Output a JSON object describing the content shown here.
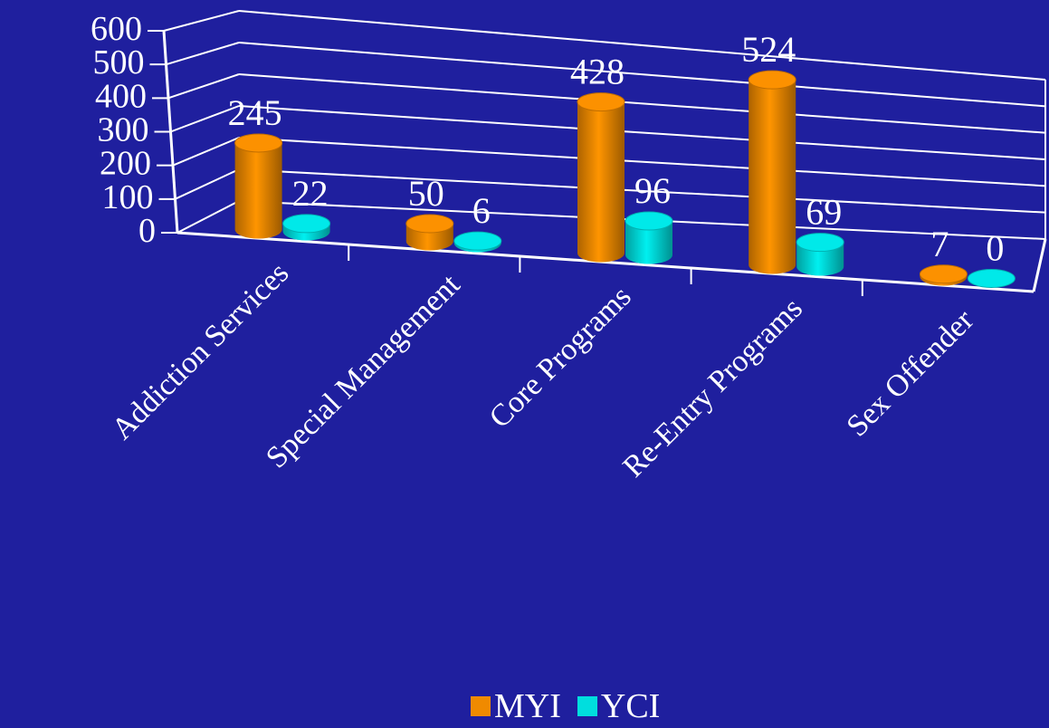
{
  "chart_data": {
    "type": "bar",
    "categories": [
      "Addiction Services",
      "Special Management",
      "Core Programs",
      "Re-Entry Programs",
      "Sex Offender"
    ],
    "series": [
      {
        "name": "MYI",
        "values": [
          245,
          50,
          428,
          524,
          7
        ],
        "color": "#f08a00"
      },
      {
        "name": "YCI",
        "values": [
          22,
          6,
          96,
          69,
          0
        ],
        "color": "#00dede"
      }
    ],
    "yticks": [
      "0",
      "100",
      "200",
      "300",
      "400",
      "500",
      "600"
    ],
    "ylim": [
      0,
      600
    ],
    "grid": true,
    "style": "3d-cylinder",
    "legend": "bottom",
    "title": "",
    "xlabel": "",
    "ylabel": ""
  },
  "colors": {
    "background": "#1f1f9e",
    "axis": "#ffffff",
    "text": "#ffffff"
  }
}
